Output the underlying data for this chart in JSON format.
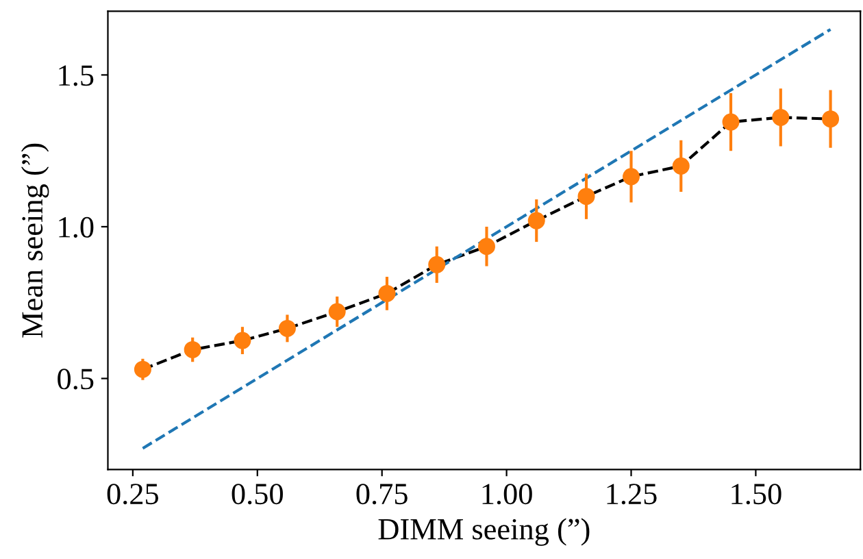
{
  "chart_data": {
    "type": "scatter",
    "xlabel": "DIMM seeing (”)",
    "ylabel": "Mean seeing (”)",
    "x": [
      0.27,
      0.37,
      0.47,
      0.56,
      0.66,
      0.76,
      0.86,
      0.96,
      1.06,
      1.16,
      1.25,
      1.35,
      1.45,
      1.55,
      1.65
    ],
    "series": [
      {
        "type": "line",
        "color": "#000000",
        "line_style": "dashed",
        "marker": "none",
        "values": [
          0.53,
          0.595,
          0.625,
          0.665,
          0.72,
          0.78,
          0.875,
          0.935,
          1.02,
          1.1,
          1.165,
          1.2,
          1.345,
          1.36,
          1.355
        ]
      },
      {
        "color": "#ff7f0e",
        "marker": "circle",
        "values": [
          0.53,
          0.595,
          0.625,
          0.665,
          0.72,
          0.78,
          0.875,
          0.935,
          1.02,
          1.1,
          1.165,
          1.2,
          1.345,
          1.36,
          1.355
        ],
        "errors": [
          0.035,
          0.04,
          0.045,
          0.045,
          0.05,
          0.055,
          0.06,
          0.065,
          0.07,
          0.075,
          0.085,
          0.085,
          0.095,
          0.095,
          0.095
        ]
      },
      {
        "type": "line",
        "color": "#1f77b4",
        "line_style": "dashed",
        "marker": "none",
        "x": [
          0.27,
          1.65
        ],
        "values": [
          0.27,
          1.65
        ]
      }
    ],
    "xlim": [
      0.2,
      1.71
    ],
    "ylim": [
      0.2,
      1.71
    ],
    "xticks": [
      {
        "value": 0.25,
        "label": "0.25"
      },
      {
        "value": 0.5,
        "label": "0.50"
      },
      {
        "value": 0.75,
        "label": "0.75"
      },
      {
        "value": 1.0,
        "label": "1.00"
      },
      {
        "value": 1.25,
        "label": "1.25"
      },
      {
        "value": 1.5,
        "label": "1.50"
      }
    ],
    "yticks": [
      0.5,
      {
        "value": 1.0,
        "label": "1.0"
      },
      1.5
    ],
    "grid": false
  }
}
